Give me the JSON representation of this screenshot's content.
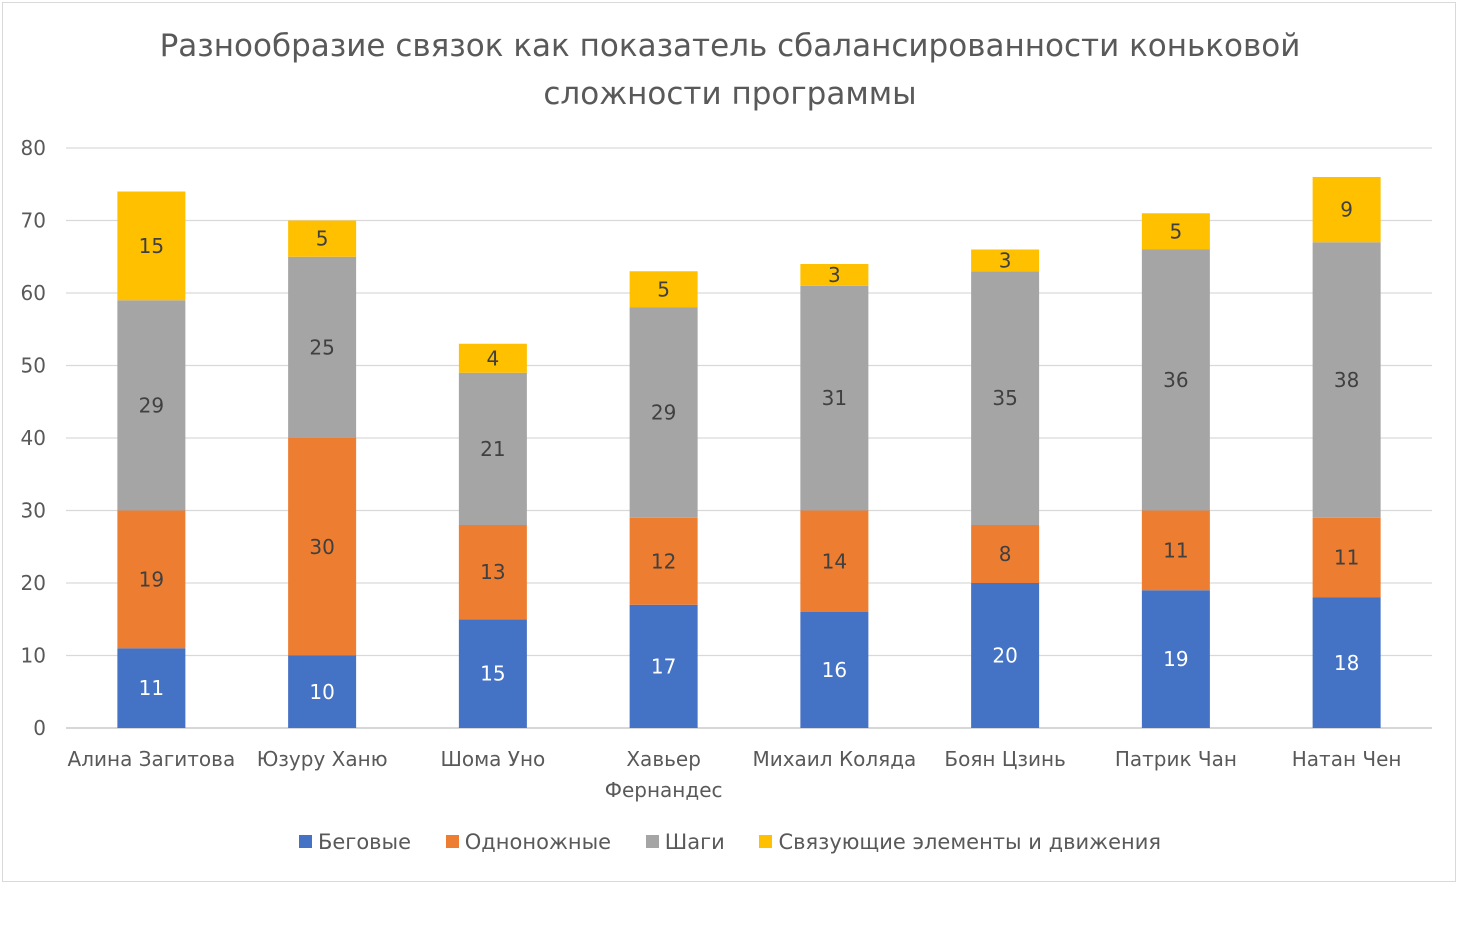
{
  "chart_data": {
    "type": "bar",
    "stacked": true,
    "title": "Разнообразие связок как показатель сбалансированности коньковой сложности программы",
    "title_lines": [
      "Разнообразие связок как показатель сбалансированности коньковой",
      "сложности программы"
    ],
    "categories": [
      "Алина Загитова",
      "Юзуру Ханю",
      "Шома Уно",
      "Хавьер Фернандес",
      "Михаил Коляда",
      "Боян Цзинь",
      "Патрик Чан",
      "Натан Чен"
    ],
    "category_lines": [
      [
        "Алина Загитова"
      ],
      [
        "Юзуру Ханю"
      ],
      [
        "Шома Уно"
      ],
      [
        "Хавьер",
        "Фернандес"
      ],
      [
        "Михаил Коляда"
      ],
      [
        "Боян Цзинь"
      ],
      [
        "Патрик Чан"
      ],
      [
        "Натан Чен"
      ]
    ],
    "series": [
      {
        "name": "Беговые",
        "color": "#4472c4",
        "values": [
          11,
          10,
          15,
          17,
          16,
          20,
          19,
          18
        ]
      },
      {
        "name": "Одноножные",
        "color": "#ed7d31",
        "values": [
          19,
          30,
          13,
          12,
          14,
          8,
          11,
          11
        ]
      },
      {
        "name": "Шаги",
        "color": "#a5a5a5",
        "values": [
          29,
          25,
          21,
          29,
          31,
          35,
          36,
          38
        ]
      },
      {
        "name": "Связующие элементы и движения",
        "color": "#ffc000",
        "values": [
          15,
          5,
          4,
          5,
          3,
          3,
          5,
          9
        ]
      }
    ],
    "y_ticks": [
      0,
      10,
      20,
      30,
      40,
      50,
      60,
      70,
      80
    ],
    "ylim": [
      0,
      80
    ],
    "grid": true,
    "legend_position": "bottom",
    "data_labels": true
  }
}
